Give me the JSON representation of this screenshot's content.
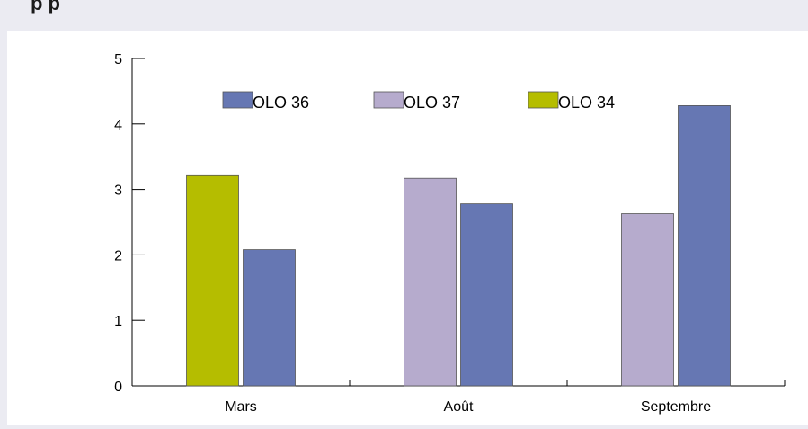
{
  "header": {
    "title_fragment": "p p"
  },
  "chart_data": {
    "type": "bar",
    "categories": [
      "Mars",
      "Août",
      "Septembre"
    ],
    "series": [
      {
        "name": "OLO 36",
        "color": "#6677b3",
        "values": [
          2.08,
          2.78,
          4.28
        ]
      },
      {
        "name": "OLO 37",
        "color": "#b6abcd",
        "values": [
          null,
          3.17,
          2.63
        ]
      },
      {
        "name": "OLO 34",
        "color": "#b5bd00",
        "values": [
          3.21,
          null,
          null
        ]
      }
    ],
    "bar_order": [
      [
        "OLO 34",
        "OLO 36"
      ],
      [
        "OLO 37",
        "OLO 36"
      ],
      [
        "OLO 37",
        "OLO 36"
      ]
    ],
    "ylim": [
      0,
      5
    ],
    "yticks": [
      "0",
      "1",
      "2",
      "3",
      "4",
      "5"
    ],
    "grid": false,
    "legend": "top"
  }
}
